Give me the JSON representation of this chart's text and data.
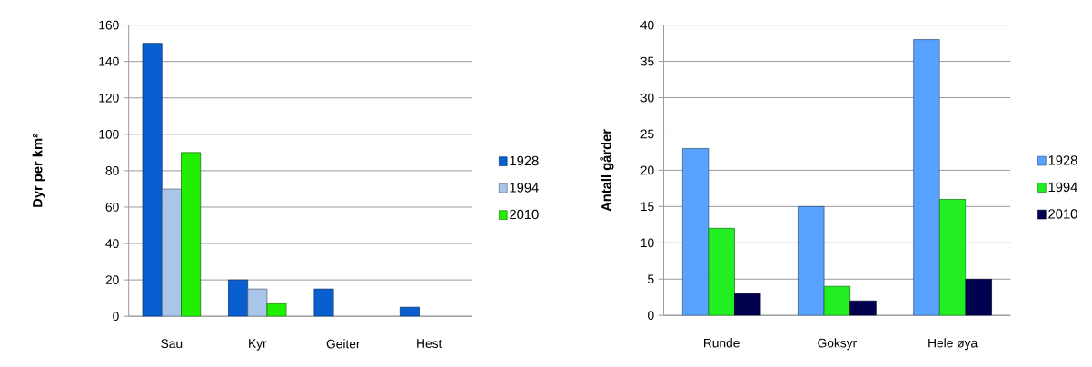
{
  "chart_data": [
    {
      "type": "bar",
      "ylabel": "Dyr per km²",
      "categories": [
        "Sau",
        "Kyr",
        "Geiter",
        "Hest"
      ],
      "series": [
        {
          "name": "1928",
          "color": "#0a5fd0",
          "values": [
            150,
            20,
            15,
            5
          ]
        },
        {
          "name": "1994",
          "color": "#a9c5ea",
          "values": [
            70,
            15,
            null,
            null
          ]
        },
        {
          "name": "2010",
          "color": "#22ee00",
          "values": [
            90,
            7,
            null,
            null
          ]
        }
      ],
      "ylim": [
        0,
        160
      ],
      "yticks": [
        0,
        20,
        40,
        60,
        80,
        100,
        120,
        140,
        160
      ],
      "grid": "y",
      "legend": "right"
    },
    {
      "type": "bar",
      "ylabel": "Antall gårder",
      "categories": [
        "Runde",
        "Goksyr",
        "Hele øya"
      ],
      "series": [
        {
          "name": "1928",
          "color": "#5aa2ff",
          "values": [
            23,
            15,
            38
          ]
        },
        {
          "name": "1994",
          "color": "#22ee22",
          "values": [
            12,
            4,
            16
          ]
        },
        {
          "name": "2010",
          "color": "#00004f",
          "values": [
            3,
            2,
            5
          ]
        }
      ],
      "ylim": [
        0,
        40
      ],
      "yticks": [
        0,
        5,
        10,
        15,
        20,
        25,
        30,
        35,
        40
      ],
      "grid": "y",
      "legend": "right"
    }
  ]
}
